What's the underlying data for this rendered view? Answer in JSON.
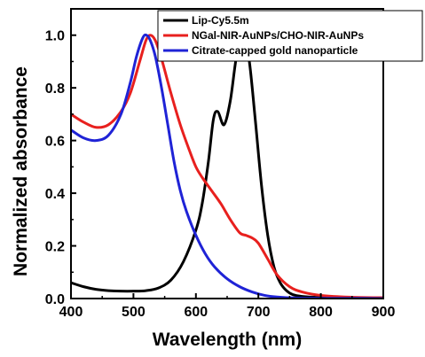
{
  "chart_data": {
    "type": "line",
    "title": "",
    "xlabel": "Wavelength (nm)",
    "ylabel": "Normalized absorbance",
    "xlim": [
      400,
      900
    ],
    "ylim": [
      0.0,
      1.1
    ],
    "xticks": [
      "400",
      "500",
      "600",
      "700",
      "800",
      "900"
    ],
    "yticks": [
      "0.0",
      "0.2",
      "0.4",
      "0.6",
      "0.8",
      "1.0"
    ],
    "grid": false,
    "legend_position": "top-right",
    "series": [
      {
        "name": "Lip-Cy5.5m",
        "color": "#000000",
        "x": [
          400,
          420,
          440,
          460,
          480,
          500,
          520,
          540,
          560,
          580,
          600,
          610,
          620,
          628,
          635,
          645,
          655,
          665,
          675,
          685,
          695,
          705,
          715,
          725,
          735,
          745,
          755,
          770,
          790,
          820,
          860,
          900
        ],
        "y": [
          0.06,
          0.045,
          0.035,
          0.03,
          0.028,
          0.028,
          0.03,
          0.04,
          0.07,
          0.14,
          0.26,
          0.36,
          0.52,
          0.68,
          0.71,
          0.66,
          0.75,
          0.92,
          1.0,
          0.91,
          0.68,
          0.43,
          0.24,
          0.12,
          0.06,
          0.03,
          0.015,
          0.008,
          0.005,
          0.004,
          0.003,
          0.003
        ]
      },
      {
        "name": "NGal-NIR-AuNPs/CHO-NIR-AuNPs",
        "color": "#e8201e",
        "x": [
          400,
          420,
          440,
          460,
          480,
          495,
          510,
          520,
          527,
          535,
          545,
          560,
          575,
          590,
          600,
          610,
          625,
          640,
          655,
          670,
          680,
          690,
          700,
          715,
          730,
          750,
          770,
          800,
          850,
          900
        ],
        "y": [
          0.7,
          0.67,
          0.65,
          0.66,
          0.71,
          0.78,
          0.9,
          0.98,
          1.0,
          0.98,
          0.91,
          0.78,
          0.66,
          0.56,
          0.5,
          0.46,
          0.41,
          0.36,
          0.3,
          0.25,
          0.24,
          0.23,
          0.21,
          0.15,
          0.09,
          0.045,
          0.025,
          0.012,
          0.005,
          0.003
        ]
      },
      {
        "name": "Citrate-capped gold nanoparticle",
        "color": "#1f23d6",
        "x": [
          400,
          420,
          440,
          460,
          480,
          495,
          505,
          515,
          521,
          527,
          535,
          545,
          555,
          565,
          575,
          585,
          600,
          615,
          630,
          650,
          670,
          690,
          710,
          730,
          760,
          800,
          850,
          900
        ],
        "y": [
          0.64,
          0.61,
          0.6,
          0.62,
          0.7,
          0.82,
          0.92,
          0.99,
          1.0,
          0.98,
          0.92,
          0.8,
          0.66,
          0.52,
          0.41,
          0.33,
          0.24,
          0.17,
          0.12,
          0.075,
          0.045,
          0.025,
          0.012,
          0.006,
          0.002,
          0.001,
          0.001,
          0.0
        ]
      }
    ]
  }
}
